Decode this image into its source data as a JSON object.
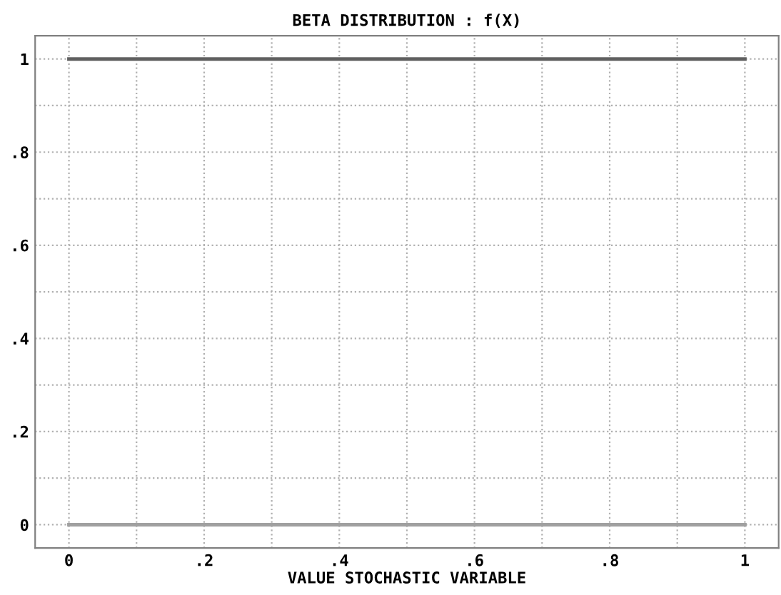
{
  "chart_data": {
    "type": "line",
    "title": "BETA DISTRIBUTION : f(X)",
    "xlabel": "VALUE STOCHASTIC VARIABLE",
    "x": [
      0,
      1
    ],
    "series": [
      {
        "values": [
          1,
          1
        ],
        "color": "#606060"
      },
      {
        "values": [
          0,
          0
        ],
        "color": "#a0a0a0"
      }
    ],
    "xlim": [
      -0.05,
      1.05
    ],
    "ylim": [
      -0.05,
      1.05
    ],
    "xticks": [
      {
        "value": 0,
        "label": "0"
      },
      {
        "value": 0.1,
        "label": null
      },
      {
        "value": 0.2,
        "label": ".2"
      },
      {
        "value": 0.3,
        "label": null
      },
      {
        "value": 0.4,
        "label": ".4"
      },
      {
        "value": 0.5,
        "label": null
      },
      {
        "value": 0.6,
        "label": ".6"
      },
      {
        "value": 0.7,
        "label": null
      },
      {
        "value": 0.8,
        "label": ".8"
      },
      {
        "value": 0.9,
        "label": null
      },
      {
        "value": 1,
        "label": "1"
      }
    ],
    "yticks": [
      {
        "value": 0,
        "label": "0"
      },
      {
        "value": 0.1,
        "label": null
      },
      {
        "value": 0.2,
        "label": ".2"
      },
      {
        "value": 0.3,
        "label": null
      },
      {
        "value": 0.4,
        "label": ".4"
      },
      {
        "value": 0.5,
        "label": null
      },
      {
        "value": 0.6,
        "label": ".6"
      },
      {
        "value": 0.7,
        "label": null
      },
      {
        "value": 0.8,
        "label": ".8"
      },
      {
        "value": 0.9,
        "label": null
      },
      {
        "value": 1,
        "label": "1"
      }
    ],
    "grid": true,
    "line_style": "solid",
    "marker": "none"
  }
}
